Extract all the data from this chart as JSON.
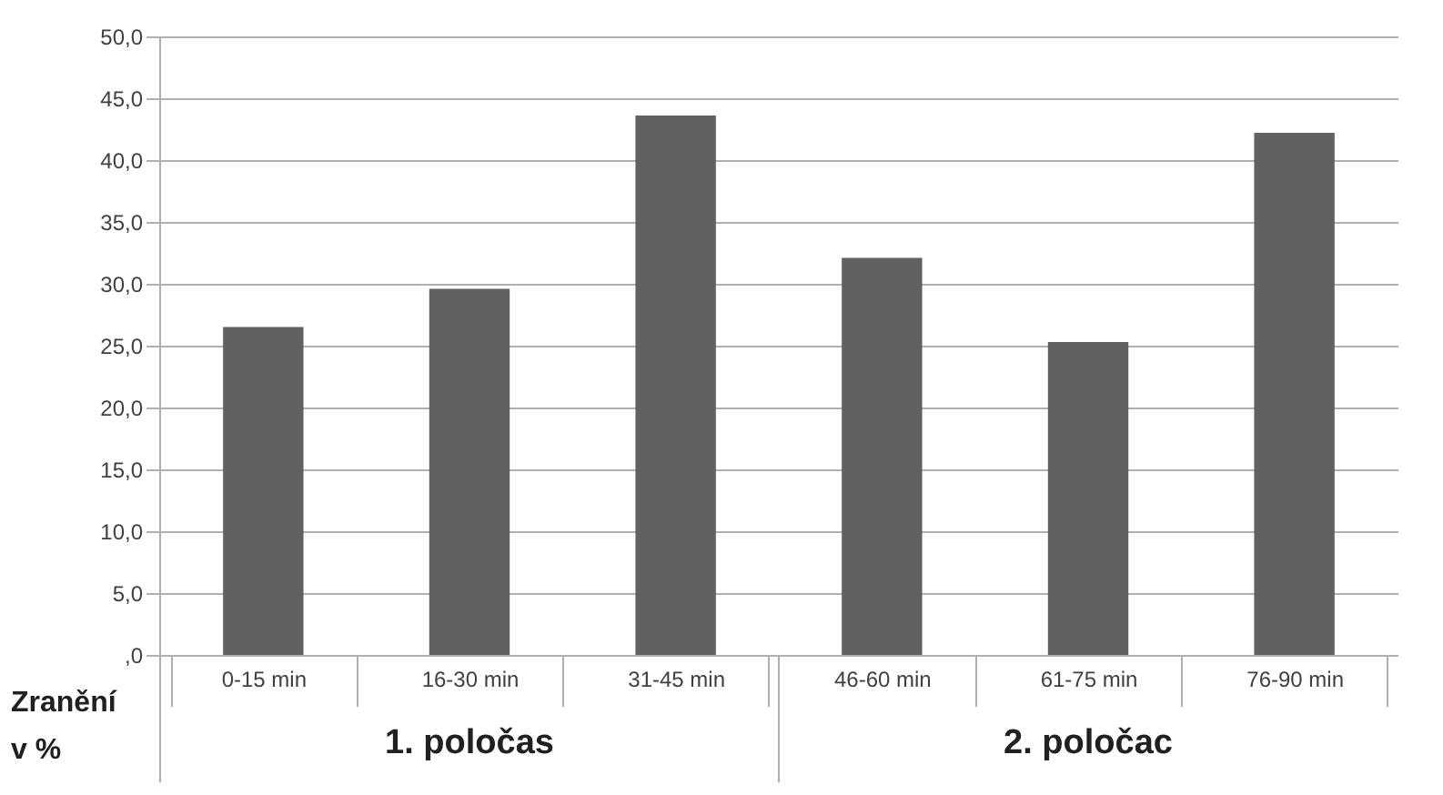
{
  "chart_data": {
    "type": "bar",
    "ylabel": "Zranění v %",
    "categories": [
      "0-15 min",
      "16-30 min",
      "31-45 min",
      "46-60 min",
      "61-75 min",
      "76-90 min"
    ],
    "values": [
      26.5,
      29.6,
      43.6,
      32.1,
      25.3,
      42.2
    ],
    "color": "#616161",
    "ylim": [
      0,
      50
    ],
    "yticks": [
      {
        "value": 0,
        "label": ",0"
      },
      {
        "value": 5,
        "label": "5,0"
      },
      {
        "value": 10,
        "label": "10,0"
      },
      {
        "value": 15,
        "label": "15,0"
      },
      {
        "value": 20,
        "label": "20,0"
      },
      {
        "value": 25,
        "label": "25,0"
      },
      {
        "value": 30,
        "label": "30,0"
      },
      {
        "value": 35,
        "label": "35,0"
      },
      {
        "value": 40,
        "label": "40,0"
      },
      {
        "value": 45,
        "label": "45,0"
      },
      {
        "value": 50,
        "label": "50,0"
      }
    ],
    "grid": "y",
    "annotations": [
      "1. poločas",
      "2. poločac"
    ]
  }
}
